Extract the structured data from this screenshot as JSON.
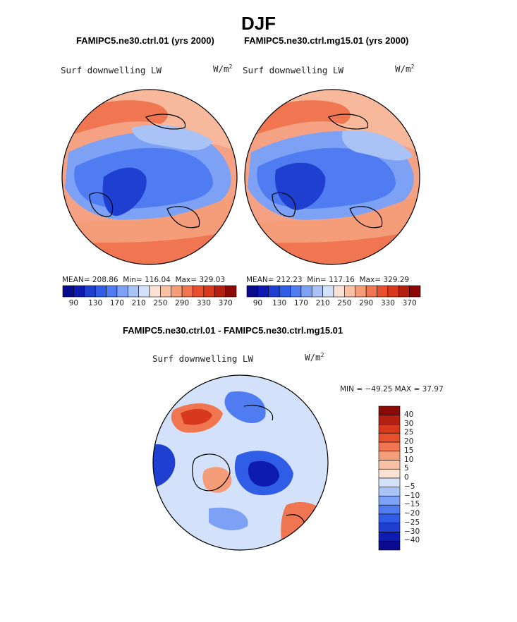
{
  "figure": {
    "title": "DJF",
    "panel_left": {
      "case": "FAMIPC5.ne30.ctrl.01 (yrs 2000)",
      "variable": "Surf downwelling LW",
      "units_base": "W/m",
      "units_exp": "2",
      "mean_text": "MEAN= 208.86",
      "min_text": "Min= 116.04",
      "max_text": "Max= 329.03"
    },
    "panel_right": {
      "case": "FAMIPC5.ne30.ctrl.mg15.01 (yrs 2000)",
      "variable": "Surf downwelling LW",
      "units_base": "W/m",
      "units_exp": "2",
      "mean_text": "MEAN= 212.23",
      "min_text": "Min= 117.16",
      "max_text": "Max= 329.29"
    },
    "panel_diff": {
      "case": "FAMIPC5.ne30.ctrl.01 - FAMIPC5.ne30.ctrl.mg15.01",
      "variable": "Surf downwelling LW",
      "units_base": "W/m",
      "units_exp": "2",
      "minmax_text": "MIN = −49.25 MAX =  37.97"
    }
  },
  "colorbar_main": {
    "tick_labels": [
      "90",
      "130",
      "170",
      "210",
      "250",
      "290",
      "330",
      "370"
    ],
    "colors": [
      "#0a0a8c",
      "#0e1bb0",
      "#1e3fd0",
      "#2f5de6",
      "#4f7cf0",
      "#7da2f5",
      "#a9c3f7",
      "#d3e2fa",
      "#fbe2d5",
      "#f8c0a4",
      "#f59c79",
      "#ef7650",
      "#e8502d",
      "#d8381b",
      "#b41f10",
      "#8c0a06"
    ]
  },
  "colorbar_diff": {
    "labels": [
      "40",
      "30",
      "25",
      "20",
      "15",
      "10",
      "5",
      "0",
      "−5",
      "−10",
      "−15",
      "−20",
      "−25",
      "−30",
      "−40"
    ],
    "colors": [
      "#8c0a06",
      "#b41f10",
      "#d8381b",
      "#e8502d",
      "#ef7650",
      "#f59c79",
      "#f8c0a4",
      "#fbe2d5",
      "#d3e2fa",
      "#a9c3f7",
      "#7da2f5",
      "#4f7cf0",
      "#2f5de6",
      "#1e3fd0",
      "#0e1bb0",
      "#0a0a8c"
    ]
  }
}
